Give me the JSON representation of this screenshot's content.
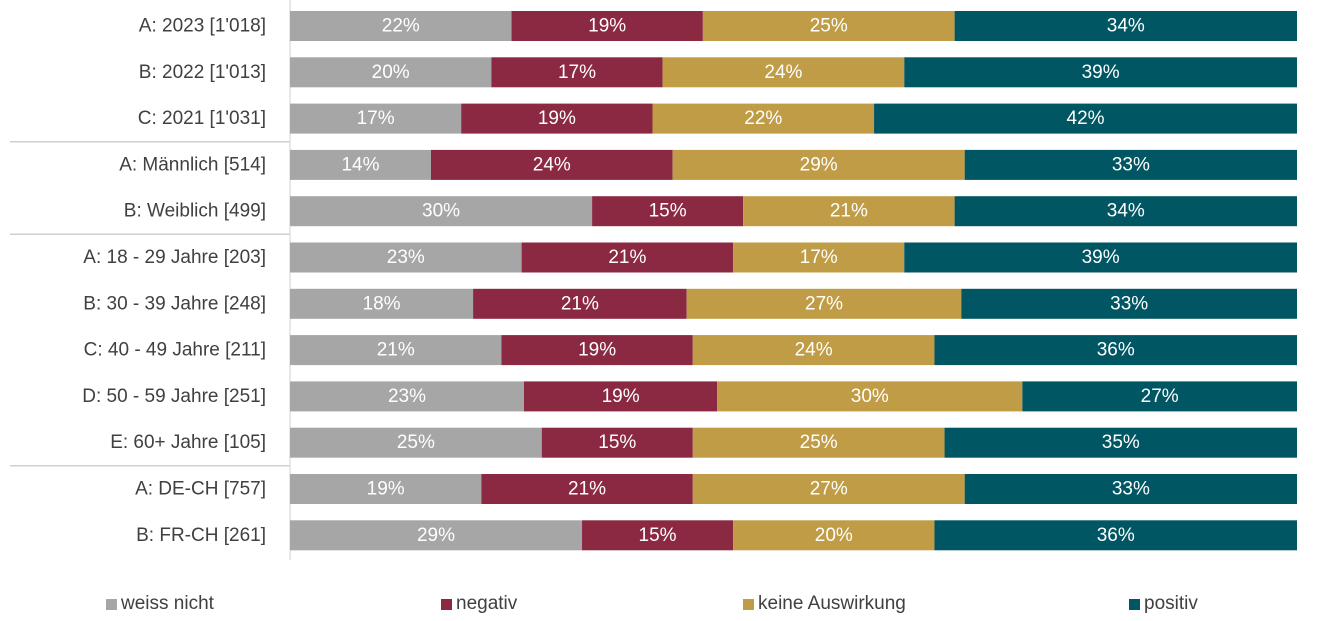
{
  "chart_data": {
    "type": "bar",
    "orientation": "horizontal",
    "stacked": "percent",
    "categories": [
      "A: 2023 [1'018]",
      "B: 2022 [1'013]",
      "C: 2021 [1'031]",
      "A: Männlich [514]",
      "B: Weiblich [499]",
      "A: 18 - 29 Jahre [203]",
      "B: 30 - 39 Jahre [248]",
      "C: 40 - 49 Jahre [211]",
      "D: 50 - 59 Jahre [251]",
      "E: 60+ Jahre [105]",
      "A: DE-CH [757]",
      "B: FR-CH [261]"
    ],
    "group_breaks_after": [
      2,
      4,
      9
    ],
    "series": [
      {
        "name": "weiss nicht",
        "color": "#a6a6a6",
        "values": [
          22,
          20,
          17,
          14,
          30,
          23,
          18,
          21,
          23,
          25,
          19,
          29
        ]
      },
      {
        "name": "negativ",
        "color": "#8b2942",
        "values": [
          19,
          17,
          19,
          24,
          15,
          21,
          21,
          19,
          19,
          15,
          21,
          15
        ]
      },
      {
        "name": "keine Auswirkung",
        "color": "#bf9c45",
        "values": [
          25,
          24,
          22,
          29,
          21,
          17,
          27,
          24,
          30,
          25,
          27,
          20
        ]
      },
      {
        "name": "positiv",
        "color": "#005662",
        "values": [
          34,
          39,
          42,
          33,
          34,
          39,
          33,
          36,
          27,
          35,
          33,
          36
        ]
      }
    ],
    "value_suffix": "%",
    "xlim": [
      0,
      100
    ],
    "grid": false,
    "legend_position": "bottom"
  }
}
